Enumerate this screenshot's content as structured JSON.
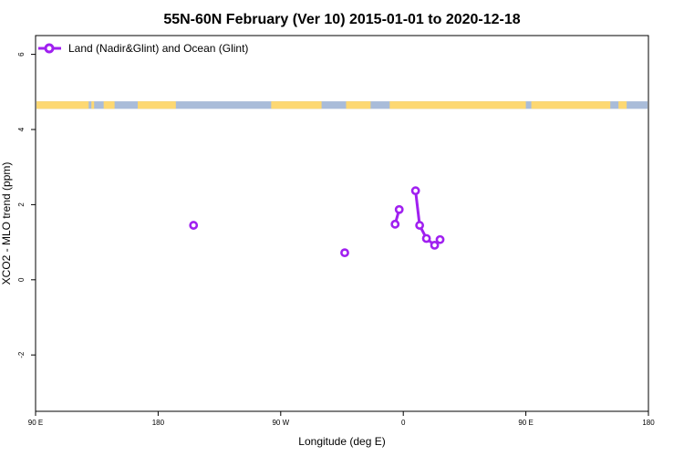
{
  "chart_data": {
    "type": "scatter",
    "title": "55N-60N February (Ver 10)   2015-01-01 to 2020-12-18",
    "xlabel": "Longitude (deg E)",
    "ylabel": "XCO2 - MLO trend (ppm)",
    "xlim": [
      90,
      540
    ],
    "ylim": [
      -3.5,
      6.5
    ],
    "x_ticks": [
      90,
      180,
      270,
      360,
      450,
      540
    ],
    "x_tick_labels": [
      "90 E",
      "180",
      "90 W",
      "0",
      "90 E",
      "180"
    ],
    "y_ticks": [
      -2,
      0,
      2,
      4,
      6
    ],
    "y_tick_labels": [
      "-2",
      "0",
      "2",
      "4",
      "6"
    ],
    "grid": false,
    "legend_position": "top-left",
    "series": [
      {
        "name": "Land (Nadir&Glint) and Ocean (Glint)",
        "color": "#a020f0",
        "marker": "open-circle",
        "points": [
          {
            "x": 206,
            "y": 1.45
          },
          {
            "x": 317,
            "y": 0.72
          },
          {
            "x": 354,
            "y": 1.48
          },
          {
            "x": 357,
            "y": 1.87
          },
          {
            "x": 369,
            "y": 2.37
          },
          {
            "x": 372,
            "y": 1.45
          },
          {
            "x": 377,
            "y": 1.1
          },
          {
            "x": 383,
            "y": 0.92
          },
          {
            "x": 387,
            "y": 1.07
          }
        ],
        "line_segments": [
          [
            2,
            3
          ],
          [
            4,
            5
          ],
          [
            5,
            6
          ],
          [
            6,
            7
          ]
        ]
      }
    ],
    "landmask_band": {
      "y_range": [
        4.55,
        4.75
      ],
      "ocean_color": "#a9bcd9",
      "land_color": "#fdd872"
    }
  }
}
